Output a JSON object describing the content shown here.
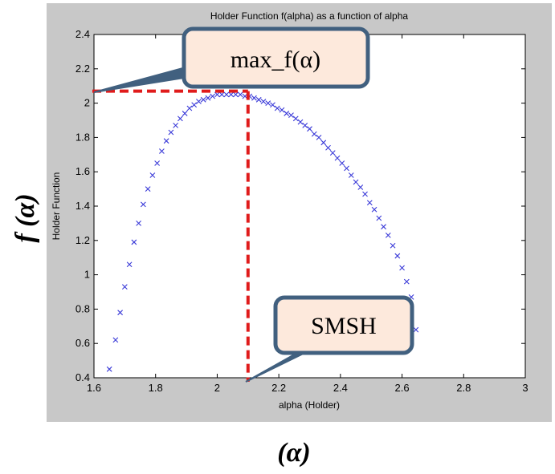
{
  "chart_data": {
    "type": "scatter",
    "title": "Holder Function f(alpha) as a function of alpha",
    "xlabel": "alpha (Holder)",
    "ylabel": "Holder Function",
    "xlim": [
      1.6,
      3.0
    ],
    "ylim": [
      0.4,
      2.4
    ],
    "xticks": [
      "1.6",
      "1.8",
      "2",
      "2.2",
      "2.4",
      "2.6",
      "2.8",
      "3"
    ],
    "yticks": [
      "0.4",
      "0.6",
      "0.8",
      "1",
      "1.2",
      "1.4",
      "1.6",
      "1.8",
      "2",
      "2.2",
      "2.4"
    ],
    "grid": false,
    "marker": "x",
    "marker_color": "#3a3ad8",
    "series": [
      {
        "x": [
          1.65,
          1.67,
          1.685,
          1.7,
          1.715,
          1.73,
          1.745,
          1.76,
          1.775,
          1.79,
          1.805,
          1.82,
          1.835,
          1.85,
          1.865,
          1.88,
          1.895,
          1.91,
          1.925,
          1.94,
          1.955,
          1.97,
          1.985,
          2.0,
          2.015,
          2.03,
          2.045,
          2.06,
          2.075,
          2.09,
          2.105,
          2.12,
          2.135,
          2.15,
          2.165,
          2.18,
          2.195,
          2.21,
          2.225,
          2.24,
          2.255,
          2.27,
          2.285,
          2.3,
          2.315,
          2.33,
          2.345,
          2.36,
          2.375,
          2.39,
          2.405,
          2.42,
          2.435,
          2.45,
          2.465,
          2.48,
          2.495,
          2.51,
          2.525,
          2.54,
          2.555,
          2.57,
          2.585,
          2.6,
          2.615,
          2.63,
          2.645
        ],
        "y": [
          0.45,
          0.62,
          0.78,
          0.93,
          1.06,
          1.19,
          1.3,
          1.41,
          1.5,
          1.58,
          1.65,
          1.72,
          1.78,
          1.83,
          1.87,
          1.91,
          1.94,
          1.97,
          1.99,
          2.01,
          2.02,
          2.03,
          2.04,
          2.05,
          2.05,
          2.05,
          2.05,
          2.05,
          2.05,
          2.04,
          2.04,
          2.03,
          2.02,
          2.01,
          2.0,
          1.99,
          1.97,
          1.96,
          1.94,
          1.93,
          1.91,
          1.89,
          1.87,
          1.85,
          1.82,
          1.8,
          1.77,
          1.74,
          1.71,
          1.68,
          1.65,
          1.62,
          1.58,
          1.54,
          1.51,
          1.47,
          1.42,
          1.38,
          1.33,
          1.28,
          1.23,
          1.17,
          1.11,
          1.04,
          0.96,
          0.87,
          0.68
        ]
      }
    ],
    "reference_lines": {
      "color": "#e01b1b",
      "style": "dashed",
      "x_value": 2.1,
      "y_value": 2.07
    }
  },
  "annotations": {
    "max_callout": "max_f(α)",
    "smsh_callout": "SMSH",
    "callout_fill": "#fde9dc",
    "callout_border": "#41607f"
  },
  "outer_labels": {
    "y_label": "f (α)",
    "x_label": "(α)"
  }
}
